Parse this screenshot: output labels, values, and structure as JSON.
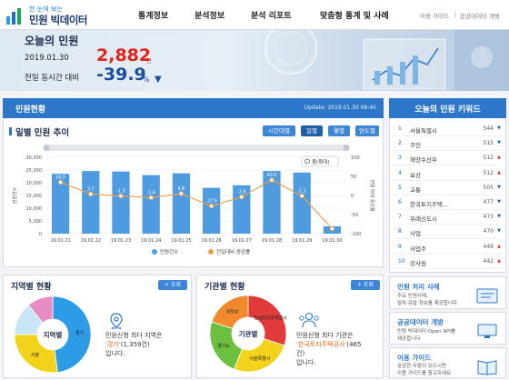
{
  "header": {
    "logo_small": "한 눈에 보는",
    "logo_big": "민원 빅데이터",
    "nav": [
      "통계정보",
      "분석정보",
      "분석 리포트",
      "맞춤형 통계 및 사례"
    ],
    "util": [
      "이용 가이드",
      "공공데이터 개방"
    ]
  },
  "hero": {
    "title": "오늘의 민원",
    "date": "2019.01.30",
    "count": "2,882",
    "count_unit": "건",
    "compare_label": "전일 동시간 대비",
    "rate": "-39.9",
    "rate_unit": "%"
  },
  "status": {
    "title": "민원현황",
    "update": "Update: 2019.01.30 08:40",
    "trend_title": "일별 민원 추이",
    "tabs": [
      "시간대별",
      "일별",
      "월별",
      "연도별"
    ],
    "zoom_label": "줌(확대)"
  },
  "chart_data": {
    "type": "bar",
    "categories": [
      "19.01.21",
      "19.01.22",
      "19.01.23",
      "19.01.24",
      "19.01.25",
      "19.01.26",
      "19.01.27",
      "19.01.28",
      "19.01.29",
      "19.01.30"
    ],
    "series": [
      {
        "name": "민원건수",
        "values": [
          23500,
          24600,
          24400,
          23000,
          23700,
          18000,
          19000,
          24600,
          24000,
          2882
        ]
      },
      {
        "name": "전일대비 증감률",
        "values": [
          34.5,
          3.7,
          -1.3,
          -5.6,
          4.8,
          -27.9,
          -3.8,
          40.5,
          -1.1,
          -87.0
        ]
      }
    ],
    "point_labels": [
      "34.5",
      "3.7",
      "-1.3",
      "-5.6",
      "4.8",
      "-27.9",
      "-3.8",
      "40.5",
      "-1.1",
      "-87.0"
    ],
    "yticks_left": [
      "30,000",
      "25,000",
      "20,000",
      "15,000",
      "10,000",
      "5,000",
      "0"
    ],
    "yticks_right": [
      "100",
      "50",
      "0",
      "-50",
      "-100"
    ],
    "ylabel_left": "민원건수",
    "ylabel_right": "전일 대비 증감률",
    "ylim_left": [
      0,
      30000
    ],
    "ylim_right": [
      -100,
      100
    ],
    "bar_color": "#4f9be0",
    "line_color": "#f0a050"
  },
  "region": {
    "title": "지역별 현황",
    "more": "+ 조회",
    "donut_center": "지역별",
    "slices": [
      {
        "label": "경기",
        "value": 48,
        "color": "#2e9be6"
      },
      {
        "label": "서울",
        "value": 27,
        "color": "#f2d21b"
      },
      {
        "label": "",
        "value": 14,
        "color": "#c9e6f7"
      },
      {
        "label": "",
        "value": 11,
        "color": "#e98bc3"
      }
    ],
    "info_line1": "민원신청 최다 지역은",
    "info_em": "'경기'",
    "info_count": "(1,359건)",
    "info_line3": "입니다."
  },
  "agency": {
    "title": "기관별 현황",
    "more": "+ 조회",
    "donut_center": "기관별",
    "slices": [
      {
        "label": "한국토지주택공사",
        "value": 30,
        "color": "#e03a3a"
      },
      {
        "label": "서울특별시",
        "value": 26,
        "color": "#f2d21b"
      },
      {
        "label": "경기도",
        "value": 24,
        "color": "#6cbf3f"
      },
      {
        "label": "국토부",
        "value": 20,
        "color": "#f08a2c"
      }
    ],
    "info_line1": "민원신청 최다 기관은",
    "info_em": "'한국토지주택공사'",
    "info_count": "(465",
    "info_line3": "건)",
    "info_line4": "입니다."
  },
  "keywords": {
    "title": "오늘의 민원 키워드",
    "items": [
      {
        "rank": "1",
        "name": "서울특별시",
        "count": "544",
        "arrow": "▼",
        "color": "#1a5fb4"
      },
      {
        "rank": "2",
        "name": "주민",
        "count": "515",
        "arrow": "▼",
        "color": "#1a5fb4"
      },
      {
        "rank": "3",
        "name": "해양수산부",
        "count": "512",
        "arrow": "▲",
        "color": "#e2231a"
      },
      {
        "rank": "4",
        "name": "보상",
        "count": "512",
        "arrow": "▲",
        "color": "#e2231a"
      },
      {
        "rank": "5",
        "name": "교통",
        "count": "505",
        "arrow": "▼",
        "color": "#1a5fb4"
      },
      {
        "rank": "6",
        "name": "한국토지주택...",
        "count": "477",
        "arrow": "▼",
        "color": "#1a5fb4"
      },
      {
        "rank": "7",
        "name": "위례신도시",
        "count": "473",
        "arrow": "▼",
        "color": "#1a5fb4"
      },
      {
        "rank": "8",
        "name": "사업",
        "count": "470",
        "arrow": "▼",
        "color": "#1a5fb4"
      },
      {
        "rank": "9",
        "name": "사업주",
        "count": "449",
        "arrow": "▲",
        "color": "#e2231a"
      },
      {
        "rank": "10",
        "name": "강사원",
        "count": "442",
        "arrow": "▲",
        "color": "#e2231a"
      }
    ]
  },
  "side": {
    "case_title": "민원 처리 사례",
    "case_desc": [
      "주요 민원사례,",
      "알차·유발 정보를 제공합니다"
    ],
    "open_title": "공공데이터 개방",
    "open_desc": [
      "민원 빅데이터 Open API를",
      "제공합니다"
    ],
    "guide_title": "이용 가이드",
    "guide_desc": [
      "궁금한 사항이 있으시면",
      "이용 가이드를 참고하세요"
    ]
  }
}
